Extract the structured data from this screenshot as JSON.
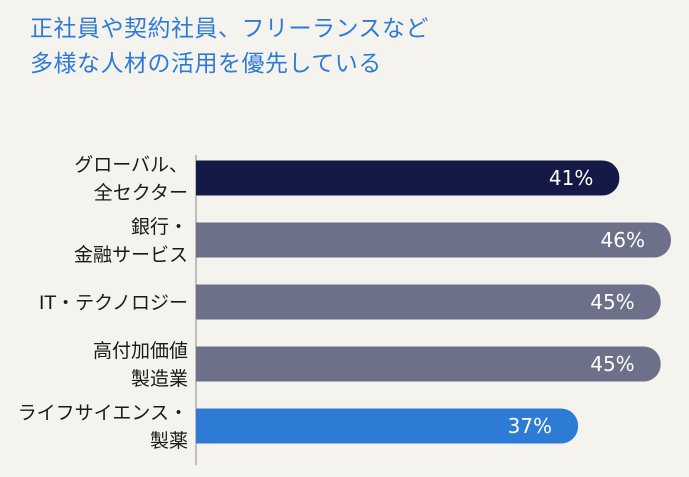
{
  "title_lines": [
    "正社員や契約社員、フリーランスなど",
    "多様な人材の活用を優先している"
  ],
  "colors": {
    "title": "#2e7bd6",
    "global": "#141a45",
    "sector": "#6c7088",
    "highlight": "#2e7bd6",
    "background": "#f5f3ee",
    "axis": "#8a8a8a"
  },
  "chart_data": {
    "type": "bar",
    "orientation": "horizontal",
    "categories": [
      [
        "グローバル、",
        "全セクター"
      ],
      [
        "銀行・",
        "金融サービス"
      ],
      [
        "IT・テクノロジー"
      ],
      [
        "高付加価値",
        "製造業"
      ],
      [
        "ライフサイエンス・",
        "製薬"
      ]
    ],
    "values": [
      41,
      46,
      45,
      45,
      37
    ],
    "value_labels": [
      "41%",
      "46%",
      "45%",
      "45%",
      "37%"
    ],
    "bar_colors": [
      "global",
      "sector",
      "sector",
      "sector",
      "highlight"
    ],
    "xlim": [
      0,
      46
    ],
    "title": "正社員や契約社員、フリーランスなど 多様な人材の活用を優先している",
    "xlabel": "",
    "ylabel": "",
    "grid": false,
    "legend": "none"
  }
}
